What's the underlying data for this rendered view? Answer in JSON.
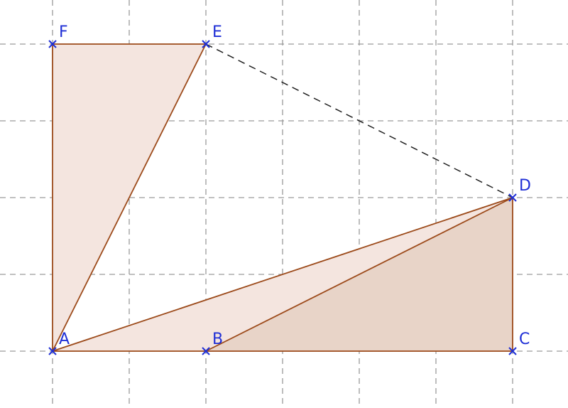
{
  "colors": {
    "grid": "#9a9a9a",
    "edge": "#9c4a1a",
    "fill_light": "#f4e5df",
    "fill_dark": "#e8d4c8",
    "point": "#1f2fd6",
    "dashed": "#222222"
  },
  "grid": {
    "columns": 8,
    "rows": 5,
    "dashed": true
  },
  "points": [
    {
      "name": "A",
      "gx": 0,
      "gy": 0
    },
    {
      "name": "B",
      "gx": 2,
      "gy": 0
    },
    {
      "name": "C",
      "gx": 6,
      "gy": 0
    },
    {
      "name": "D",
      "gx": 6,
      "gy": 2
    },
    {
      "name": "E",
      "gx": 2,
      "gy": 4
    },
    {
      "name": "F",
      "gx": 0,
      "gy": 4
    }
  ],
  "polygons": [
    {
      "id": "triangle-AEF",
      "vertices": [
        "A",
        "E",
        "F"
      ],
      "fill": "fill_light"
    },
    {
      "id": "triangle-ABD",
      "vertices": [
        "A",
        "B",
        "D"
      ],
      "fill": "fill_light"
    },
    {
      "id": "triangle-BCD",
      "vertices": [
        "B",
        "C",
        "D"
      ],
      "fill": "fill_dark"
    }
  ],
  "segments": [
    {
      "from": "A",
      "to": "F"
    },
    {
      "from": "F",
      "to": "E"
    },
    {
      "from": "A",
      "to": "E"
    },
    {
      "from": "A",
      "to": "C"
    },
    {
      "from": "A",
      "to": "D"
    },
    {
      "from": "B",
      "to": "D"
    },
    {
      "from": "C",
      "to": "D"
    }
  ],
  "dashed_segments": [
    {
      "from": "E",
      "to": "D"
    }
  ]
}
